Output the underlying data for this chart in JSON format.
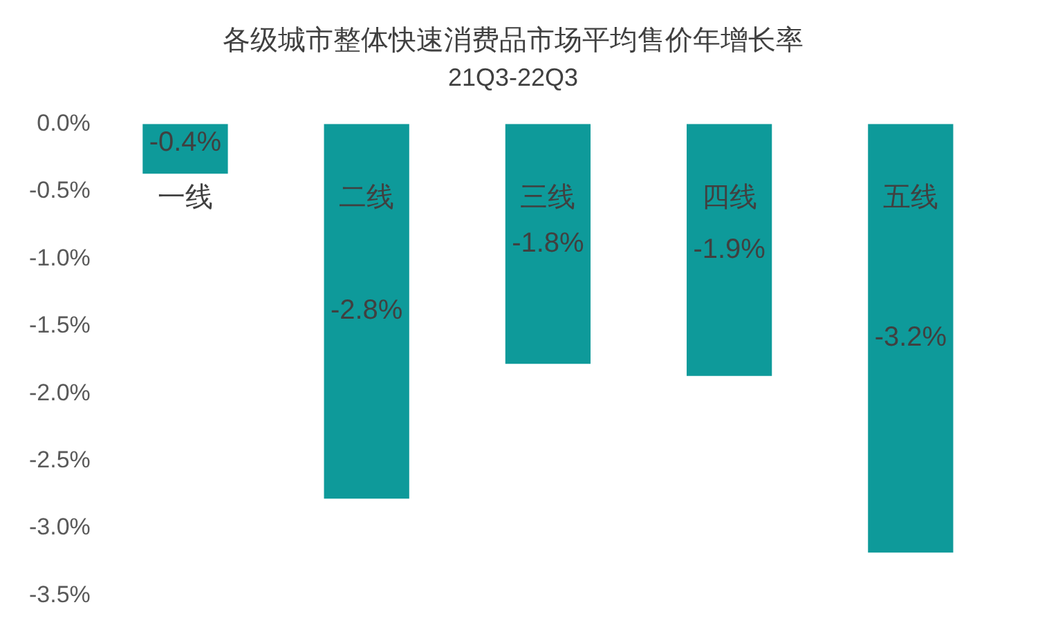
{
  "chart_data": {
    "type": "bar",
    "title": "各级城市整体快速消费品市场平均售价年增长率",
    "subtitle": "21Q3-22Q3",
    "categories": [
      "一线",
      "二线",
      "三线",
      "四线",
      "五线"
    ],
    "values": [
      -0.37,
      -2.78,
      -1.78,
      -1.87,
      -3.18
    ],
    "value_labels": [
      "-0.4%",
      "-2.8%",
      "-1.8%",
      "-1.9%",
      "-3.2%"
    ],
    "color": "#0e9a9a",
    "ylim": [
      -3.5,
      0
    ],
    "yticks": [
      {
        "value": 0,
        "label": "0.0%"
      },
      {
        "value": -0.5,
        "label": "-0.5%"
      },
      {
        "value": -1,
        "label": "-1.0%"
      },
      {
        "value": -1.5,
        "label": "-1.5%"
      },
      {
        "value": -2,
        "label": "-2.0%"
      },
      {
        "value": -2.5,
        "label": "-2.5%"
      },
      {
        "value": -3,
        "label": "-3.0%"
      },
      {
        "value": -3.5,
        "label": "-3.5%"
      }
    ],
    "grid": false,
    "legend": false
  }
}
